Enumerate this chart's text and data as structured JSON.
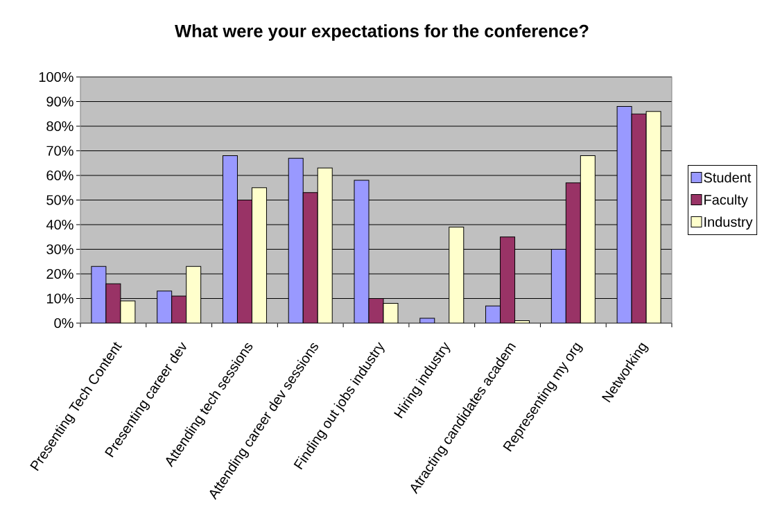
{
  "chart_data": {
    "type": "bar",
    "title": "What were your expectations for the conference?",
    "categories": [
      "Presenting Tech Content",
      "Presenting career dev",
      "Attending tech sessions",
      "Attending career dev sessions",
      "Finding out jobs industry",
      "Hiring industry",
      "Atracting candidates academ",
      "Representing my org",
      "Networking"
    ],
    "series": [
      {
        "name": "Student",
        "color": "#9999ff",
        "values": [
          23,
          13,
          68,
          67,
          58,
          2,
          7,
          30,
          88
        ]
      },
      {
        "name": "Faculty",
        "color": "#993366",
        "values": [
          16,
          11,
          50,
          53,
          10,
          null,
          35,
          57,
          85
        ]
      },
      {
        "name": "Industry",
        "color": "#ffffcc",
        "values": [
          9,
          23,
          55,
          63,
          8,
          39,
          1,
          68,
          86
        ]
      }
    ],
    "ylim": [
      0,
      100
    ],
    "yticks": [
      {
        "value": 0,
        "label": "0%"
      },
      {
        "value": 10,
        "label": "10%"
      },
      {
        "value": 20,
        "label": "20%"
      },
      {
        "value": 30,
        "label": "30%"
      },
      {
        "value": 40,
        "label": "40%"
      },
      {
        "value": 50,
        "label": "50%"
      },
      {
        "value": 60,
        "label": "60%"
      },
      {
        "value": 70,
        "label": "70%"
      },
      {
        "value": 80,
        "label": "80%"
      },
      {
        "value": 90,
        "label": "90%"
      },
      {
        "value": 100,
        "label": "100%"
      }
    ],
    "grid": "y",
    "legend": "right"
  }
}
